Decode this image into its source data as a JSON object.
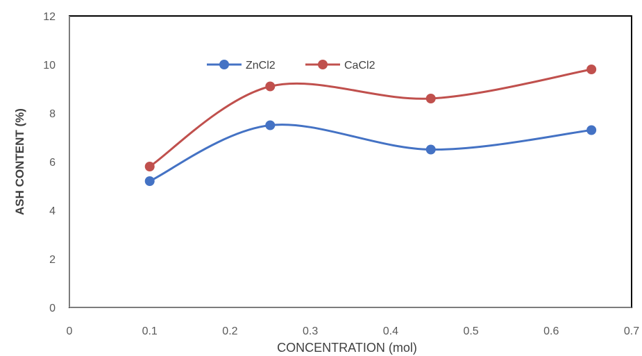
{
  "chart_data": {
    "type": "line",
    "title": "",
    "xlabel": "CONCENTRATION (mol)",
    "ylabel": "ASH CONTENT (%)",
    "xlim": [
      0,
      0.7
    ],
    "ylim": [
      0,
      12
    ],
    "x_ticks": [
      "0",
      "0.1",
      "0.2",
      "0.3",
      "0.4",
      "0.5",
      "0.6",
      "0.7"
    ],
    "y_ticks": [
      "0",
      "2",
      "4",
      "6",
      "8",
      "10",
      "12"
    ],
    "grid": false,
    "smooth": true,
    "legend_position": "top-center",
    "series": [
      {
        "name": "ZnCl2",
        "color": "#4472C4",
        "x": [
          0.1,
          0.25,
          0.45,
          0.65
        ],
        "y": [
          5.2,
          7.5,
          6.5,
          7.3
        ]
      },
      {
        "name": "CaCl2",
        "color": "#C0504D",
        "x": [
          0.1,
          0.25,
          0.45,
          0.65
        ],
        "y": [
          5.8,
          9.1,
          8.6,
          9.8
        ]
      }
    ]
  }
}
